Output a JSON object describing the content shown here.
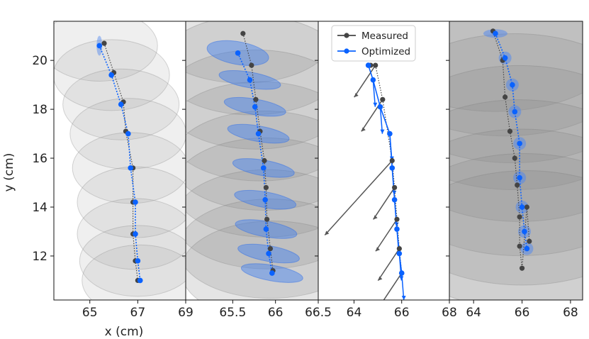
{
  "figure": {
    "ylabel": "y (cm)",
    "xlabel": "x (cm)"
  },
  "chart_data": [
    {
      "type": "scatter",
      "panel": "xy-uncertainty-circles",
      "xlim": [
        63.5,
        69.0
      ],
      "ylim": [
        10.2,
        21.6
      ],
      "xticks": [
        65,
        67,
        69
      ],
      "xtick_labels": [
        "65",
        "67",
        "69"
      ],
      "yticks": [
        12,
        14,
        16,
        18,
        20
      ],
      "ytick_labels": [
        "12",
        "14",
        "16",
        "18",
        "20"
      ],
      "circle_radius_cm": 2.5,
      "series": [
        {
          "name": "Measured",
          "color": "#444444",
          "x": [
            65.6,
            66.0,
            66.4,
            66.5,
            66.8,
            66.8,
            66.8,
            66.9,
            67.0
          ],
          "y": [
            20.7,
            19.5,
            18.3,
            17.1,
            15.6,
            14.2,
            12.9,
            11.8,
            11.0
          ]
        },
        {
          "name": "Optimized",
          "color": "#0a62ff",
          "x": [
            65.4,
            65.9,
            66.3,
            66.6,
            66.7,
            66.9,
            66.9,
            67.0,
            67.1
          ],
          "y": [
            20.6,
            19.4,
            18.2,
            17.0,
            15.6,
            14.2,
            12.9,
            11.8,
            11.0
          ]
        }
      ]
    },
    {
      "type": "scatter",
      "panel": "xy-uncertainty-ellipses",
      "xlim": [
        64.95,
        66.5
      ],
      "ylim": [
        10.2,
        21.6
      ],
      "xticks": [
        65.5,
        66.0,
        66.5
      ],
      "xtick_labels": [
        "65.5",
        "66",
        "66.5"
      ],
      "yticks": [
        12,
        14,
        16,
        18,
        20
      ],
      "series": [
        {
          "name": "Measured",
          "color": "#444444",
          "x": [
            65.62,
            65.72,
            65.77,
            65.82,
            65.87,
            65.89,
            65.9,
            65.94,
            65.97
          ],
          "y": [
            21.1,
            19.8,
            18.4,
            17.1,
            15.9,
            14.8,
            13.5,
            12.3,
            11.4
          ]
        },
        {
          "name": "Optimized",
          "color": "#0a62ff",
          "x": [
            65.56,
            65.7,
            65.76,
            65.8,
            65.86,
            65.88,
            65.89,
            65.92,
            65.96
          ],
          "y": [
            20.3,
            19.2,
            18.1,
            17.0,
            15.6,
            14.3,
            13.1,
            12.1,
            11.3
          ]
        }
      ]
    },
    {
      "type": "scatter",
      "panel": "xy-heading-arrows",
      "xlim": [
        62.5,
        68.0
      ],
      "ylim": [
        10.2,
        21.6
      ],
      "xticks": [
        64,
        66,
        68
      ],
      "xtick_labels": [
        "64",
        "66",
        "68"
      ],
      "yticks": [
        12,
        14,
        16,
        18,
        20
      ],
      "legend": {
        "placement": "top-left",
        "entries": [
          "Measured",
          "Optimized"
        ]
      },
      "series": [
        {
          "name": "Measured",
          "color": "#444444",
          "x": [
            64.7,
            64.9,
            65.2,
            65.6,
            65.7,
            65.8,
            65.9,
            66.0
          ],
          "y": [
            19.8,
            19.8,
            18.4,
            15.9,
            14.8,
            13.5,
            12.3,
            11.3
          ]
        },
        {
          "name": "Optimized",
          "color": "#0a62ff",
          "x": [
            64.6,
            64.8,
            65.1,
            65.5,
            65.6,
            65.7,
            65.8,
            65.9,
            66.0
          ],
          "y": [
            19.8,
            19.2,
            18.1,
            17.0,
            15.6,
            14.3,
            13.1,
            12.1,
            11.3
          ]
        }
      ]
    },
    {
      "type": "scatter",
      "panel": "xy-large-uncertainty",
      "xlim": [
        63.0,
        68.5
      ],
      "ylim": [
        10.2,
        21.6
      ],
      "xticks": [
        64,
        66,
        68
      ],
      "xtick_labels": [
        "64",
        "66",
        "68"
      ],
      "yticks": [
        12,
        14,
        16,
        18,
        20
      ],
      "series": [
        {
          "name": "Measured",
          "color": "#444444",
          "x": [
            64.8,
            65.2,
            65.3,
            65.5,
            65.7,
            65.8,
            65.9,
            65.9,
            66.0,
            66.2,
            66.3
          ],
          "y": [
            21.2,
            20.0,
            18.5,
            17.1,
            16.0,
            14.9,
            13.6,
            12.4,
            11.5,
            14.0,
            12.6
          ]
        },
        {
          "name": "Optimized",
          "color": "#0a62ff",
          "x": [
            64.9,
            65.3,
            65.6,
            65.7,
            65.9,
            65.9,
            66.0,
            66.1,
            66.2
          ],
          "y": [
            21.1,
            20.1,
            19.0,
            17.9,
            16.6,
            15.2,
            14.0,
            13.0,
            12.3
          ]
        }
      ]
    }
  ]
}
